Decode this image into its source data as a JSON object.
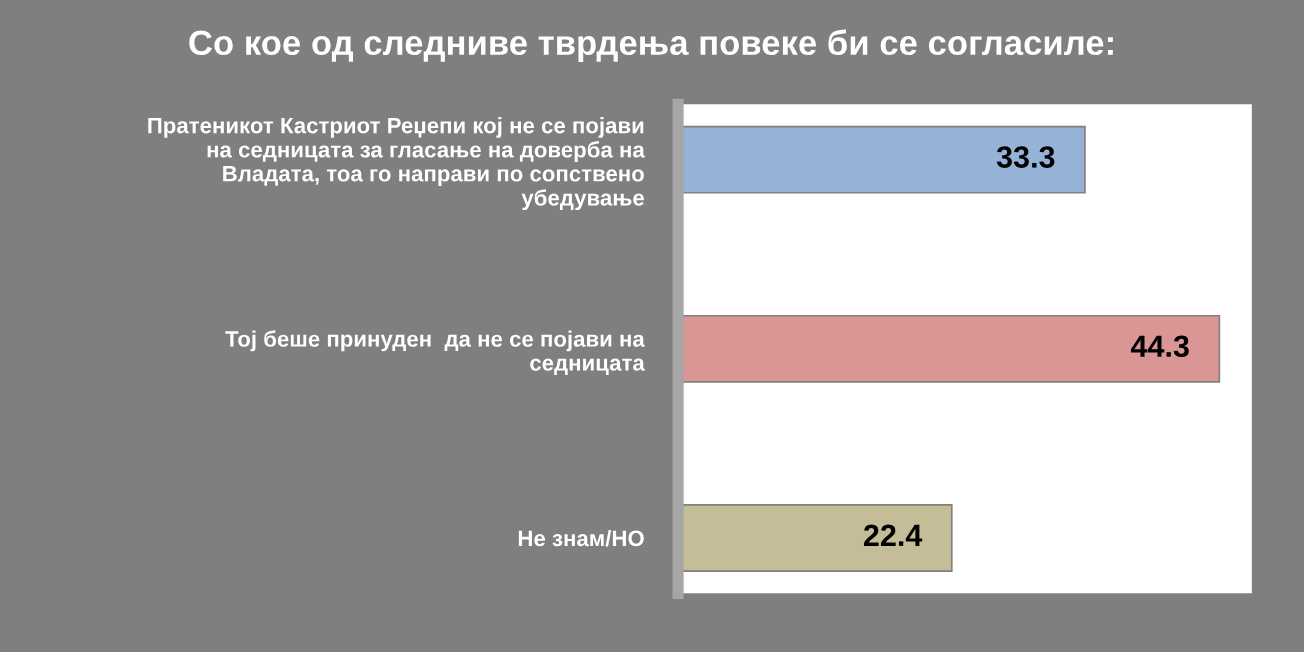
{
  "chart_data": {
    "type": "bar",
    "orientation": "horizontal",
    "title": "Со кое од следниве тврдења повеке би се согласиле:",
    "categories": [
      "Пратеникот Кастриот Реџепи кој не се појави\nна седницата за гласање на доверба на\nВладата, тоа го направи по сопствено\nубедување",
      "Тој беше принуден  да не се појави на\nседницата",
      "Не знам/НО"
    ],
    "values": [
      33.3,
      44.3,
      22.4
    ],
    "colors": [
      "#95b3d7",
      "#d99694",
      "#c4bd97"
    ],
    "data_labels": true,
    "tick_labels": "y",
    "grid": false,
    "legend": false
  }
}
